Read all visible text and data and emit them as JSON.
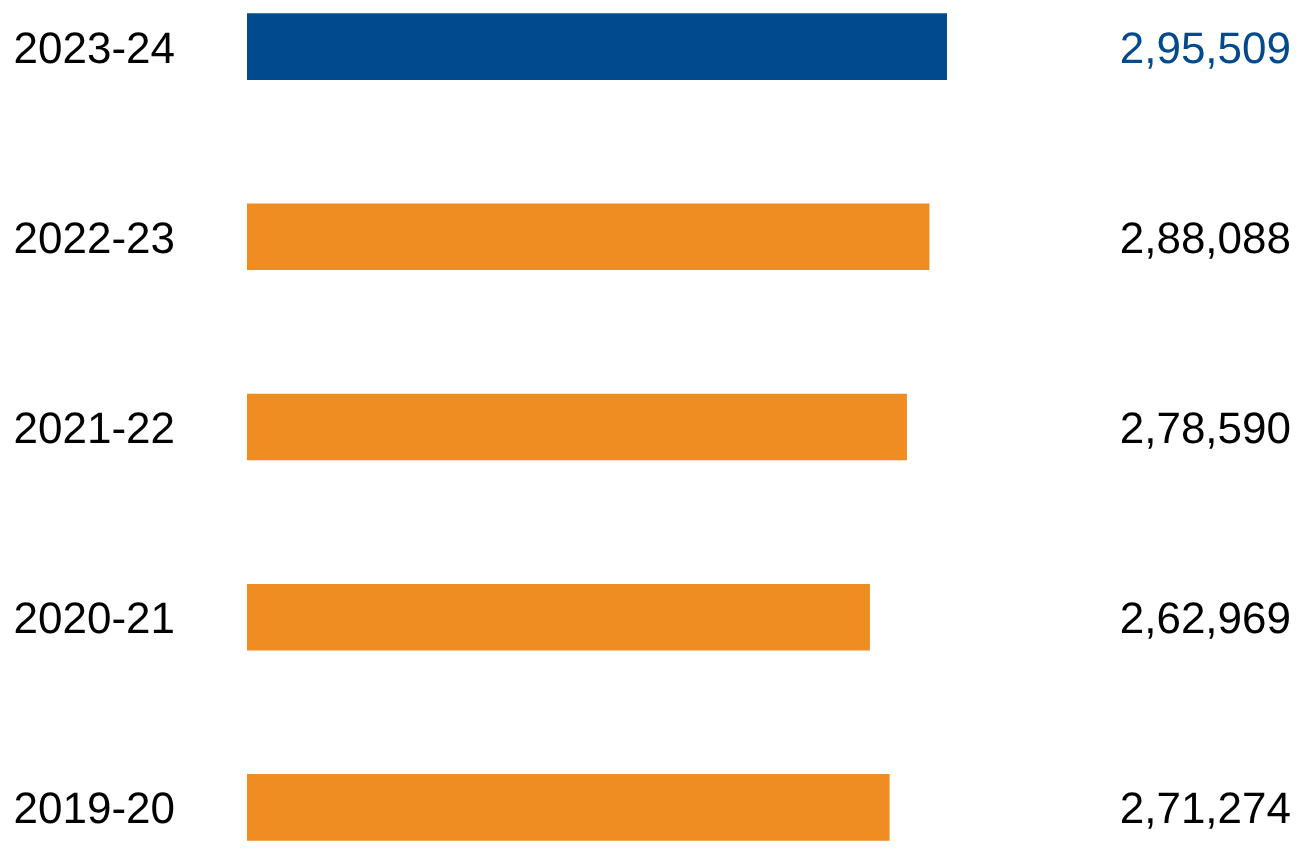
{
  "chart_data": {
    "type": "bar",
    "orientation": "horizontal",
    "categories": [
      "2023-24",
      "2022-23",
      "2021-22",
      "2020-21",
      "2019-20"
    ],
    "values": [
      295509,
      288088,
      278590,
      262969,
      271274
    ],
    "colors": [
      "#004a8d",
      "#ef8c22",
      "#ef8c22",
      "#ef8c22",
      "#ef8c22"
    ],
    "value_labels": [
      "2,95,509",
      "2,88,088",
      "2,78,590",
      "2,62,969",
      "2,71,274"
    ],
    "tick_labels": "y"
  }
}
